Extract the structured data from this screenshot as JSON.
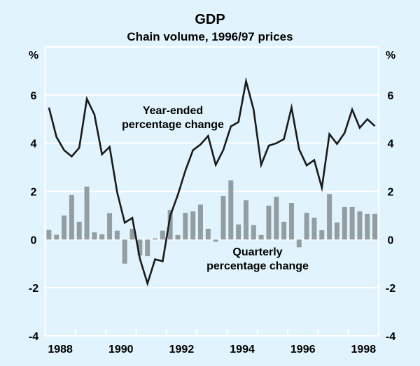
{
  "chart_data": {
    "type": "bar+line",
    "title": "GDP",
    "subtitle": "Chain volume, 1996/97 prices",
    "ylabel_left": "%",
    "ylabel_right": "%",
    "ylim": [
      -4,
      8
    ],
    "yticks": [
      -4,
      -2,
      0,
      2,
      4,
      6
    ],
    "ytick_labels": [
      "-4",
      "-2",
      "0",
      "2",
      "4",
      "6"
    ],
    "x_start": "1988 Q1",
    "x_end": "1998 Q4",
    "year_tick_labels": [
      "1988",
      "1990",
      "1992",
      "1994",
      "1996",
      "1998"
    ],
    "year_tick_label_years": [
      1988,
      1990,
      1992,
      1994,
      1996,
      1998
    ],
    "first_year": 1988,
    "num_years": 11,
    "grid": "horizontal",
    "series": [
      {
        "name": "Quarterly percentage change",
        "type": "bar",
        "color": "#939ea3",
        "values": [
          0.4,
          0.2,
          1.0,
          1.85,
          0.74,
          2.2,
          0.3,
          0.22,
          1.1,
          0.37,
          -1.0,
          0.45,
          -0.66,
          -0.69,
          0.05,
          0.37,
          1.23,
          0.19,
          1.11,
          1.17,
          1.45,
          0.45,
          -0.09,
          1.81,
          2.46,
          0.63,
          1.63,
          0.6,
          0.19,
          1.41,
          1.78,
          0.74,
          1.52,
          -0.32,
          1.11,
          0.91,
          0.39,
          1.89,
          0.71,
          1.35,
          1.35,
          1.17,
          1.06,
          1.06
        ]
      },
      {
        "name": "Year-ended percentage change",
        "type": "line",
        "color": "#1a1a1a",
        "values": [
          5.48,
          4.26,
          3.71,
          3.45,
          3.81,
          5.84,
          5.19,
          3.54,
          3.85,
          1.96,
          0.7,
          0.9,
          -0.8,
          -1.82,
          -0.82,
          -0.9,
          0.99,
          1.85,
          2.86,
          3.71,
          3.95,
          4.3,
          3.1,
          3.72,
          4.7,
          4.88,
          6.58,
          5.4,
          3.1,
          3.9,
          4.0,
          4.17,
          5.48,
          3.75,
          3.08,
          3.3,
          2.15,
          4.38,
          3.97,
          4.43,
          5.4,
          4.64,
          5.0,
          4.71
        ]
      }
    ],
    "annotations": [
      {
        "text_lines": [
          "Year-ended",
          "percentage change"
        ],
        "series": "Year-ended percentage change"
      },
      {
        "text_lines": [
          "Quarterly",
          "percentage change"
        ],
        "series": "Quarterly percentage change"
      }
    ]
  },
  "colors": {
    "background": "#e1f3fc",
    "grid": "#ffffff",
    "bar": "#939ea3",
    "line": "#1a1a1a"
  }
}
